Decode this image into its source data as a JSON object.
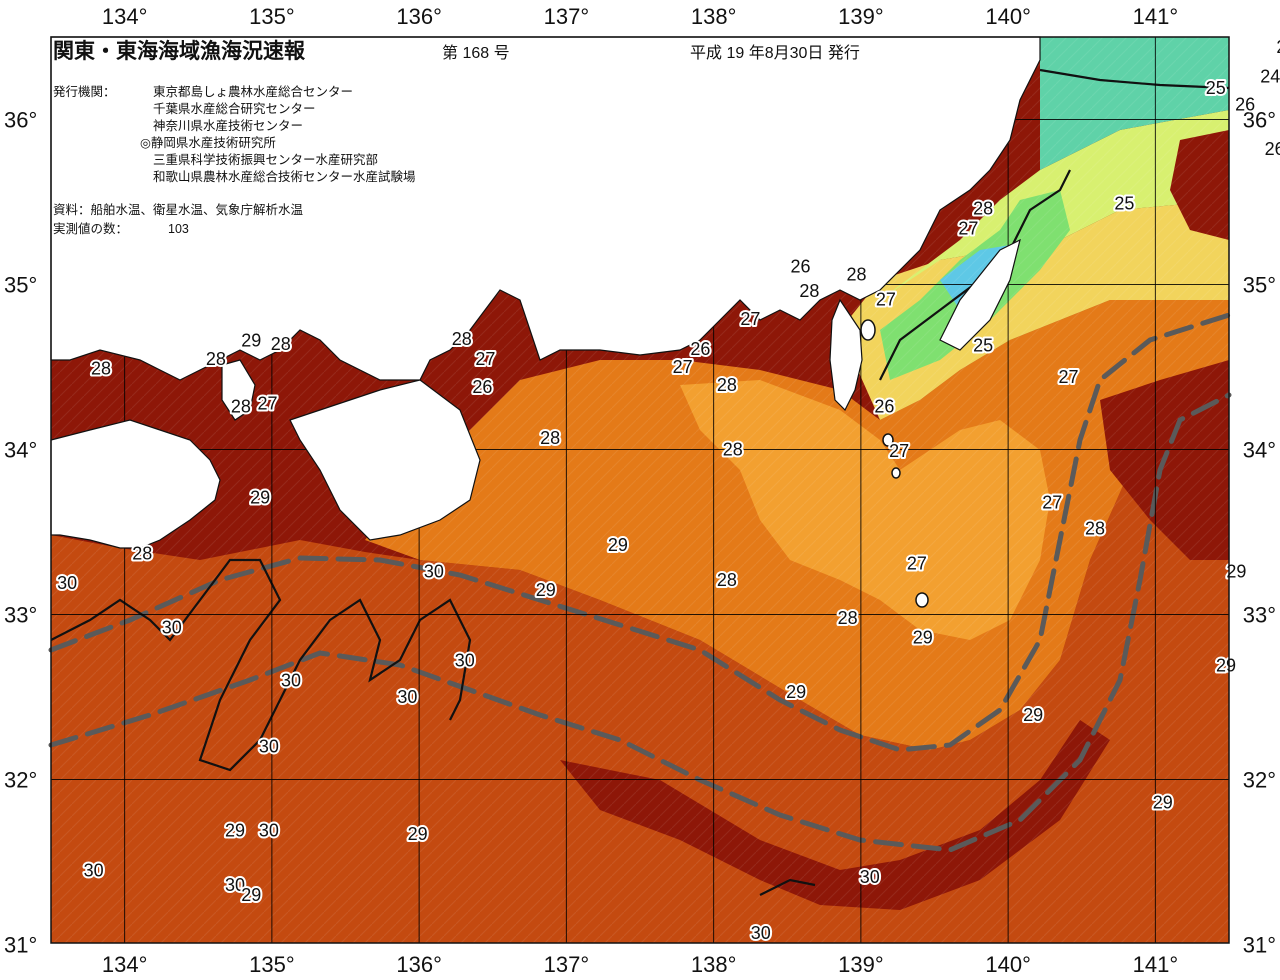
{
  "header": {
    "title": "関東・東海海域漁海況速報",
    "issue_no": "第 168 号",
    "issue_date": "平成 19 年8月30日 発行",
    "agencies_label": "発行機関：",
    "agencies": [
      "東京都島しょ農林水産総合センター",
      "千葉県水産総合研究センター",
      "神奈川県水産技術センター",
      "◎静岡県水産技術研究所",
      "三重県科学技術振興センター水産研究部",
      "和歌山県農林水産総合技術センター水産試験場"
    ],
    "sources": "資料：船舶水温、衛星水温、気象庁解析水温",
    "count_label": "実測値の数：",
    "count_value": "103"
  },
  "axes": {
    "lon_ticks": [
      "134°",
      "135°",
      "136°",
      "137°",
      "138°",
      "139°",
      "140°",
      "141°",
      "142°"
    ],
    "lat_ticks": [
      "36°",
      "35°",
      "34°",
      "33°",
      "32°",
      "31°"
    ]
  },
  "isotherm_labels": [
    {
      "text": "23",
      "lon": 141.89,
      "lat": 36.44
    },
    {
      "text": "24",
      "lon": 141.78,
      "lat": 36.26
    },
    {
      "text": "25",
      "lon": 141.41,
      "lat": 36.19
    },
    {
      "text": "26",
      "lon": 141.61,
      "lat": 36.09
    },
    {
      "text": "26",
      "lon": 141.81,
      "lat": 35.82
    },
    {
      "text": "29",
      "lon": 141.93,
      "lat": 35.51
    },
    {
      "text": "25",
      "lon": 140.79,
      "lat": 35.49
    },
    {
      "text": "28",
      "lon": 139.83,
      "lat": 35.46
    },
    {
      "text": "27",
      "lon": 139.73,
      "lat": 35.34
    },
    {
      "text": "26",
      "lon": 138.59,
      "lat": 35.11
    },
    {
      "text": "28",
      "lon": 138.65,
      "lat": 34.96
    },
    {
      "text": "28",
      "lon": 138.97,
      "lat": 35.06
    },
    {
      "text": "27",
      "lon": 139.17,
      "lat": 34.91
    },
    {
      "text": "27",
      "lon": 138.25,
      "lat": 34.79
    },
    {
      "text": "25",
      "lon": 139.83,
      "lat": 34.63
    },
    {
      "text": "26",
      "lon": 137.91,
      "lat": 34.61
    },
    {
      "text": "27",
      "lon": 137.79,
      "lat": 34.5
    },
    {
      "text": "27",
      "lon": 140.41,
      "lat": 34.44
    },
    {
      "text": "28",
      "lon": 138.09,
      "lat": 34.39
    },
    {
      "text": "26",
      "lon": 139.16,
      "lat": 34.26
    },
    {
      "text": "28",
      "lon": 136.89,
      "lat": 34.07
    },
    {
      "text": "28",
      "lon": 138.13,
      "lat": 34.0
    },
    {
      "text": "27",
      "lon": 139.26,
      "lat": 33.99
    },
    {
      "text": "27",
      "lon": 140.3,
      "lat": 33.68
    },
    {
      "text": "28",
      "lon": 140.59,
      "lat": 33.52
    },
    {
      "text": "29",
      "lon": 137.35,
      "lat": 33.42
    },
    {
      "text": "27",
      "lon": 139.38,
      "lat": 33.31
    },
    {
      "text": "28",
      "lon": 138.09,
      "lat": 33.21
    },
    {
      "text": "29",
      "lon": 141.55,
      "lat": 33.26
    },
    {
      "text": "29",
      "lon": 136.86,
      "lat": 33.15
    },
    {
      "text": "28",
      "lon": 138.91,
      "lat": 32.98
    },
    {
      "text": "29",
      "lon": 139.42,
      "lat": 32.86
    },
    {
      "text": "29",
      "lon": 141.48,
      "lat": 32.69
    },
    {
      "text": "29",
      "lon": 138.56,
      "lat": 32.53
    },
    {
      "text": "29",
      "lon": 140.17,
      "lat": 32.39
    },
    {
      "text": "28",
      "lon": 133.84,
      "lat": 34.49
    },
    {
      "text": "28",
      "lon": 134.62,
      "lat": 34.55
    },
    {
      "text": "29",
      "lon": 134.86,
      "lat": 34.66
    },
    {
      "text": "28",
      "lon": 135.06,
      "lat": 34.64
    },
    {
      "text": "28",
      "lon": 134.79,
      "lat": 34.26
    },
    {
      "text": "27",
      "lon": 134.97,
      "lat": 34.28
    },
    {
      "text": "28",
      "lon": 136.29,
      "lat": 34.67
    },
    {
      "text": "27",
      "lon": 136.45,
      "lat": 34.55
    },
    {
      "text": "26",
      "lon": 136.43,
      "lat": 34.38
    },
    {
      "text": "29",
      "lon": 134.92,
      "lat": 33.71
    },
    {
      "text": "28",
      "lon": 134.12,
      "lat": 33.37
    },
    {
      "text": "30",
      "lon": 133.61,
      "lat": 33.19
    },
    {
      "text": "30",
      "lon": 136.1,
      "lat": 33.26
    },
    {
      "text": "30",
      "lon": 134.32,
      "lat": 32.92
    },
    {
      "text": "30",
      "lon": 136.31,
      "lat": 32.72
    },
    {
      "text": "30",
      "lon": 135.13,
      "lat": 32.6
    },
    {
      "text": "30",
      "lon": 135.92,
      "lat": 32.5
    },
    {
      "text": "30",
      "lon": 134.98,
      "lat": 32.2
    },
    {
      "text": "29",
      "lon": 134.75,
      "lat": 31.69
    },
    {
      "text": "30",
      "lon": 134.98,
      "lat": 31.69
    },
    {
      "text": "29",
      "lon": 135.99,
      "lat": 31.67
    },
    {
      "text": "30",
      "lon": 133.79,
      "lat": 31.45
    },
    {
      "text": "30",
      "lon": 134.75,
      "lat": 31.36
    },
    {
      "text": "29",
      "lon": 134.86,
      "lat": 31.3
    },
    {
      "text": "29",
      "lon": 141.05,
      "lat": 31.86
    },
    {
      "text": "30",
      "lon": 139.06,
      "lat": 31.41
    },
    {
      "text": "30",
      "lon": 138.32,
      "lat": 31.07
    }
  ],
  "colors": {
    "c30": "#8e1708",
    "c29": "#c44a10",
    "c28": "#e47a18",
    "c27": "#f3a030",
    "c26": "#f2d45c",
    "c25": "#d8f070",
    "c24": "#7fe070",
    "c23": "#5fd2a8",
    "c22": "#5ec8e6",
    "land": "#ffffff",
    "current": "#5a5a5a",
    "grid": "#000000"
  }
}
